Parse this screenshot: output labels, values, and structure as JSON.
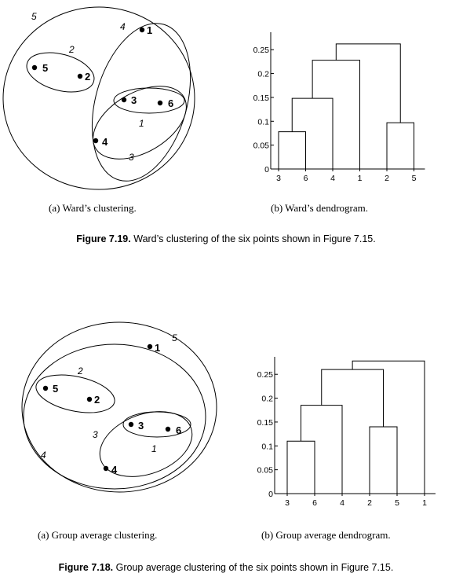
{
  "figures": [
    {
      "id": "7.19",
      "caption_number": "Figure 7.19.",
      "caption_text": "Ward’s clustering of the six points shown in Figure 7.15.",
      "subfig_a": "(a) Ward’s clustering.",
      "subfig_b": "(b) Ward’s dendrogram.",
      "points": [
        "1",
        "2",
        "3",
        "4",
        "5",
        "6"
      ],
      "cluster_labels": [
        "1",
        "2",
        "3",
        "4",
        "5"
      ]
    },
    {
      "id": "7.18",
      "caption_number": "Figure 7.18.",
      "caption_text": "Group average clustering of the six points shown in Figure 7.15.",
      "subfig_a": "(a) Group average clustering.",
      "subfig_b": "(b) Group average dendrogram.",
      "points": [
        "1",
        "2",
        "3",
        "4",
        "5",
        "6"
      ],
      "cluster_labels": [
        "1",
        "2",
        "3",
        "4",
        "5"
      ]
    }
  ],
  "chart_data": [
    {
      "type": "dendrogram",
      "title": "",
      "leaf_order": [
        "3",
        "6",
        "4",
        "1",
        "2",
        "5"
      ],
      "ylim": [
        0,
        0.28
      ],
      "yticks": [
        "0",
        "0.05",
        "0.1",
        "0.15",
        "0.2",
        "0.25"
      ],
      "ytick_values": [
        0,
        0.05,
        0.1,
        0.15,
        0.2,
        0.25
      ],
      "merges": [
        {
          "left": "3",
          "right": "6",
          "height": 0.078
        },
        {
          "left": "2",
          "right": "5",
          "height": 0.097
        },
        {
          "left": "{3,6}",
          "right": "4",
          "height": 0.148
        },
        {
          "left": "{3,6,4}",
          "right": "1",
          "height": 0.228
        },
        {
          "left": "{3,6,4,1}",
          "right": "{2,5}",
          "height": 0.262
        }
      ]
    },
    {
      "type": "dendrogram",
      "title": "",
      "leaf_order": [
        "3",
        "6",
        "4",
        "2",
        "5",
        "1"
      ],
      "ylim": [
        0,
        0.28
      ],
      "yticks": [
        "0",
        "0.05",
        "0.1",
        "0.15",
        "0.2",
        "0.25"
      ],
      "ytick_values": [
        0,
        0.05,
        0.1,
        0.15,
        0.2,
        0.25
      ],
      "merges": [
        {
          "left": "3",
          "right": "6",
          "height": 0.11
        },
        {
          "left": "2",
          "right": "5",
          "height": 0.14
        },
        {
          "left": "{3,6}",
          "right": "4",
          "height": 0.185
        },
        {
          "left": "{3,6,4}",
          "right": "{2,5}",
          "height": 0.26
        },
        {
          "left": "{3,6,4,2,5}",
          "right": "1",
          "height": 0.278
        }
      ]
    }
  ]
}
